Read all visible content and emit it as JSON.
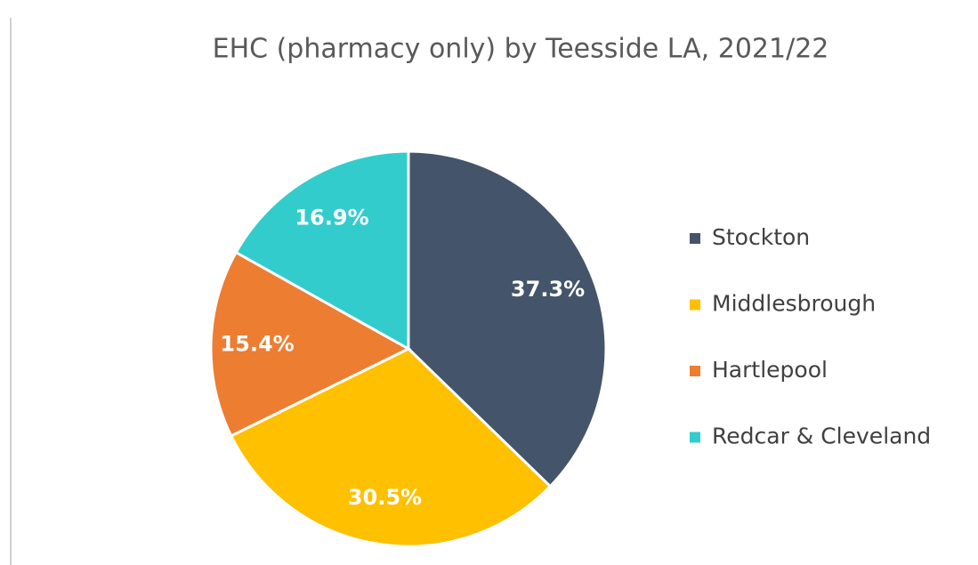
{
  "chart_data": {
    "type": "pie",
    "title": "EHC (pharmacy only) by Teesside LA, 2021/22",
    "categories": [
      "Stockton",
      "Middlesbrough",
      "Hartlepool",
      "Redcar & Cleveland"
    ],
    "values": [
      37.3,
      30.5,
      15.4,
      16.9
    ],
    "value_labels": [
      "37.3%",
      "30.5%",
      "15.4%",
      "16.9%"
    ],
    "colors": [
      "#44546a",
      "#ffc000",
      "#ed7d31",
      "#33cccc"
    ],
    "legend": "right"
  }
}
